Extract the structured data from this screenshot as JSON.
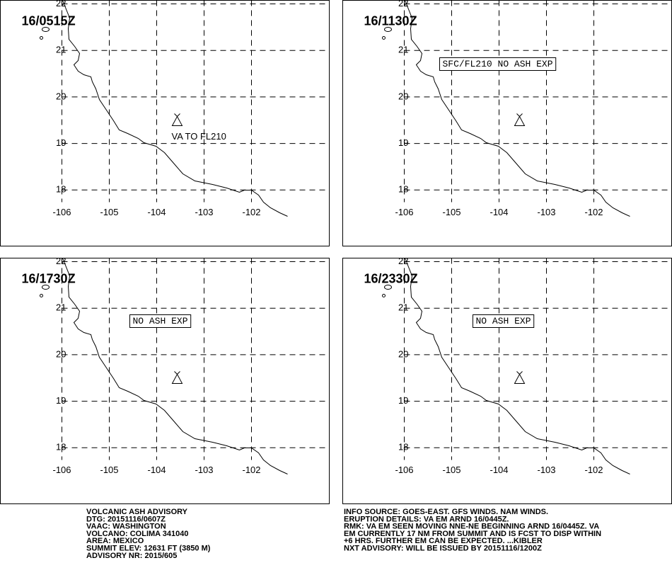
{
  "panels": [
    {
      "time": "16/0515Z",
      "note": "VA TO FL210",
      "boxed": false
    },
    {
      "time": "16/1130Z",
      "note": "SFC/FL210 NO ASH EXP",
      "boxed": true
    },
    {
      "time": "16/1730Z",
      "note": "NO ASH EXP",
      "boxed": true
    },
    {
      "time": "16/2330Z",
      "note": "NO ASH EXP",
      "boxed": true
    }
  ],
  "latitudes": [
    22,
    21,
    20,
    19,
    18
  ],
  "longitudes": [
    -106,
    -105,
    -104,
    -103,
    -102
  ],
  "advisory_left": [
    "VOLCANIC ASH ADVISORY",
    "DTG: 20151116/0607Z",
    "VAAC: WASHINGTON",
    "VOLCANO: COLIMA 341040",
    "AREA: MEXICO",
    "SUMMIT ELEV: 12631 FT (3850 M)",
    "ADVISORY NR: 2015/605"
  ],
  "advisory_right": [
    "INFO SOURCE: GOES-EAST. GFS WINDS. NAM WINDS.",
    "ERUPTION DETAILS: VA EM ARND 16/0445Z.",
    "RMK: VA EM SEEN MOVING NNE-NE BEGINNING ARND 16/0445Z. VA",
    "EM CURRENTLY 17 NM FROM SUMMIT AND IS FCST TO DISP WITHIN",
    "+6 HRS. FURTHER EM CAN BE EXPECTED. ...KIBLER",
    "NXT ADVISORY: WILL BE ISSUED BY 20151116/1200Z"
  ]
}
